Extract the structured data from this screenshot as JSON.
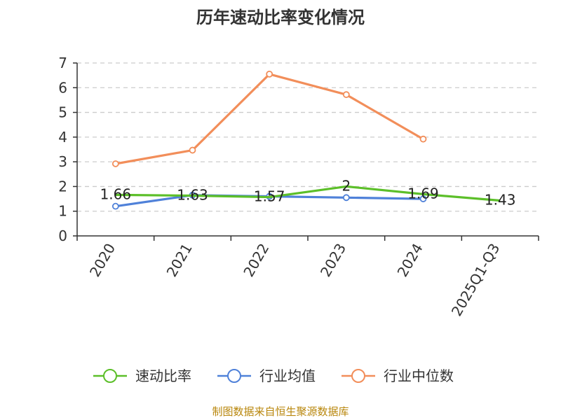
{
  "title": "历年速动比率变化情况",
  "source": "制图数据来自恒生聚源数据库",
  "colors": {
    "series_0": "#5cbf29",
    "series_1": "#4f81d9",
    "series_2": "#f28e5a",
    "grid": "#cccccc",
    "axis": "#333333"
  },
  "chart_data": {
    "type": "line",
    "title": "历年速动比率变化情况",
    "categories": [
      "2020",
      "2021",
      "2022",
      "2023",
      "2024",
      "2025Q1-Q3"
    ],
    "ylim": [
      0,
      7
    ],
    "yticks": [
      0,
      1,
      2,
      3,
      4,
      5,
      6,
      7
    ],
    "grid": true,
    "legend_position": "bottom",
    "series": [
      {
        "name": "速动比率",
        "values": [
          1.66,
          1.63,
          1.57,
          2,
          1.69,
          1.43
        ],
        "labels": [
          "1.66",
          "1.63",
          "1.57",
          "2",
          "1.69",
          "1.43"
        ]
      },
      {
        "name": "行业均值",
        "values": [
          1.2,
          1.65,
          1.6,
          1.55,
          1.5,
          null
        ]
      },
      {
        "name": "行业中位数",
        "values": [
          2.92,
          3.47,
          6.55,
          5.72,
          3.92,
          null
        ]
      }
    ]
  }
}
